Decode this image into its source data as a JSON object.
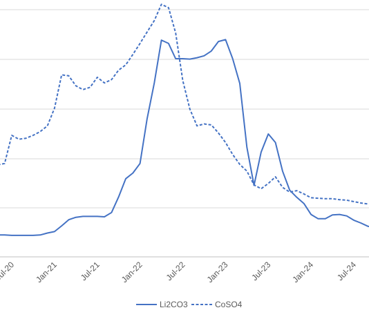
{
  "chart_data": {
    "type": "line",
    "title": "",
    "xlabel": "",
    "ylabel": "",
    "x_tick_labels": [
      "Jul-20",
      "Jan-21",
      "Jul-21",
      "Jan-22",
      "Jul-22",
      "Jan-23",
      "Jul-23",
      "Jan-24",
      "Jul-24"
    ],
    "grid": "horizontal",
    "legend_position": "bottom",
    "colors": {
      "line": "#4472C4",
      "grid": "#d9d9d9",
      "axis": "#bfbfbf",
      "text": "#595959"
    },
    "x_range": [
      "Nov-19",
      "Nov-24"
    ],
    "y_range_units": "unlabeled (axis cropped)",
    "series": [
      {
        "name": "Li2CO3",
        "style": "solid",
        "values": [
          [
            "Nov-19",
            5.0
          ],
          [
            "Dec-19",
            4.9
          ],
          [
            "Jan-20",
            4.9
          ],
          [
            "Feb-20",
            4.8
          ],
          [
            "Mar-20",
            4.8
          ],
          [
            "Apr-20",
            4.7
          ],
          [
            "May-20",
            4.6
          ],
          [
            "Jun-20",
            4.6
          ],
          [
            "Jul-20",
            4.5
          ],
          [
            "Aug-20",
            4.5
          ],
          [
            "Sep-20",
            4.5
          ],
          [
            "Oct-20",
            4.5
          ],
          [
            "Nov-20",
            4.6
          ],
          [
            "Dec-20",
            5.0
          ],
          [
            "Jan-21",
            5.3
          ],
          [
            "Feb-21",
            6.5
          ],
          [
            "Mar-21",
            7.8
          ],
          [
            "Apr-21",
            8.3
          ],
          [
            "May-21",
            8.5
          ],
          [
            "Jun-21",
            8.5
          ],
          [
            "Jul-21",
            8.5
          ],
          [
            "Aug-21",
            8.4
          ],
          [
            "Sep-21",
            9.3
          ],
          [
            "Oct-21",
            12.6
          ],
          [
            "Nov-21",
            16.4
          ],
          [
            "Dec-21",
            17.6
          ],
          [
            "Jan-22",
            19.6
          ],
          [
            "Feb-22",
            29.0
          ],
          [
            "Mar-22",
            36.5
          ],
          [
            "Apr-22",
            45.5
          ],
          [
            "May-22",
            44.8
          ],
          [
            "Jun-22",
            41.6
          ],
          [
            "Jul-22",
            41.6
          ],
          [
            "Aug-22",
            41.5
          ],
          [
            "Sep-22",
            41.8
          ],
          [
            "Oct-22",
            42.2
          ],
          [
            "Nov-22",
            43.2
          ],
          [
            "Dec-22",
            45.2
          ],
          [
            "Jan-23",
            45.6
          ],
          [
            "Feb-23",
            41.6
          ],
          [
            "Mar-23",
            36.4
          ],
          [
            "Apr-23",
            23.0
          ],
          [
            "May-23",
            15.0
          ],
          [
            "Jun-23",
            22.0
          ],
          [
            "Jul-23",
            25.8
          ],
          [
            "Aug-23",
            24.0
          ],
          [
            "Sep-23",
            18.0
          ],
          [
            "Oct-23",
            14.0
          ],
          [
            "Nov-23",
            12.5
          ],
          [
            "Dec-23",
            11.2
          ],
          [
            "Jan-24",
            8.9
          ],
          [
            "Feb-24",
            8.0
          ],
          [
            "Mar-24",
            8.0
          ],
          [
            "Apr-24",
            8.8
          ],
          [
            "May-24",
            8.9
          ],
          [
            "Jun-24",
            8.6
          ],
          [
            "Jul-24",
            7.7
          ],
          [
            "Aug-24",
            7.1
          ],
          [
            "Sep-24",
            6.4
          ],
          [
            "Oct-24",
            6.2
          ],
          [
            "Nov-24",
            6.3
          ]
        ]
      },
      {
        "name": "CoSO4",
        "style": "dashed",
        "values": [
          [
            "Nov-19",
            20.3
          ],
          [
            "Dec-19",
            22.2
          ],
          [
            "Jan-20",
            21.3
          ],
          [
            "Feb-20",
            19.2
          ],
          [
            "Mar-20",
            19.1
          ],
          [
            "Apr-20",
            19.4
          ],
          [
            "May-20",
            19.3
          ],
          [
            "Jun-20",
            19.6
          ],
          [
            "Jul-20",
            25.5
          ],
          [
            "Aug-20",
            24.7
          ],
          [
            "Sep-20",
            24.9
          ],
          [
            "Oct-20",
            25.5
          ],
          [
            "Nov-20",
            26.3
          ],
          [
            "Dec-20",
            27.5
          ],
          [
            "Jan-21",
            31.2
          ],
          [
            "Feb-21",
            38.2
          ],
          [
            "Mar-21",
            38.0
          ],
          [
            "Apr-21",
            35.9
          ],
          [
            "May-21",
            35.1
          ],
          [
            "Jun-21",
            35.6
          ],
          [
            "Jul-21",
            37.7
          ],
          [
            "Aug-21",
            36.5
          ],
          [
            "Sep-21",
            37.2
          ],
          [
            "Oct-21",
            39.2
          ],
          [
            "Nov-21",
            40.3
          ],
          [
            "Dec-21",
            42.5
          ],
          [
            "Jan-22",
            44.8
          ],
          [
            "Feb-22",
            47.2
          ],
          [
            "Mar-22",
            49.6
          ],
          [
            "Apr-22",
            53.0
          ],
          [
            "May-22",
            52.3
          ],
          [
            "Jun-22",
            47.0
          ],
          [
            "Jul-22",
            37.0
          ],
          [
            "Aug-22",
            31.0
          ],
          [
            "Sep-22",
            27.5
          ],
          [
            "Oct-22",
            27.9
          ],
          [
            "Nov-22",
            27.7
          ],
          [
            "Dec-22",
            26.0
          ],
          [
            "Jan-23",
            24.0
          ],
          [
            "Feb-23",
            21.5
          ],
          [
            "Mar-23",
            19.4
          ],
          [
            "Apr-23",
            18.0
          ],
          [
            "May-23",
            15.1
          ],
          [
            "Jun-23",
            14.3
          ],
          [
            "Jul-23",
            15.4
          ],
          [
            "Aug-23",
            16.8
          ],
          [
            "Sep-23",
            14.6
          ],
          [
            "Oct-23",
            13.6
          ],
          [
            "Nov-23",
            13.9
          ],
          [
            "Dec-23",
            13.2
          ],
          [
            "Jan-24",
            12.4
          ],
          [
            "Feb-24",
            12.3
          ],
          [
            "Mar-24",
            12.2
          ],
          [
            "Apr-24",
            12.2
          ],
          [
            "May-24",
            12.0
          ],
          [
            "Jun-24",
            11.9
          ],
          [
            "Jul-24",
            11.6
          ],
          [
            "Aug-24",
            11.3
          ],
          [
            "Sep-24",
            11.1
          ],
          [
            "Oct-24",
            11.1
          ],
          [
            "Nov-24",
            11.0
          ]
        ]
      }
    ]
  }
}
